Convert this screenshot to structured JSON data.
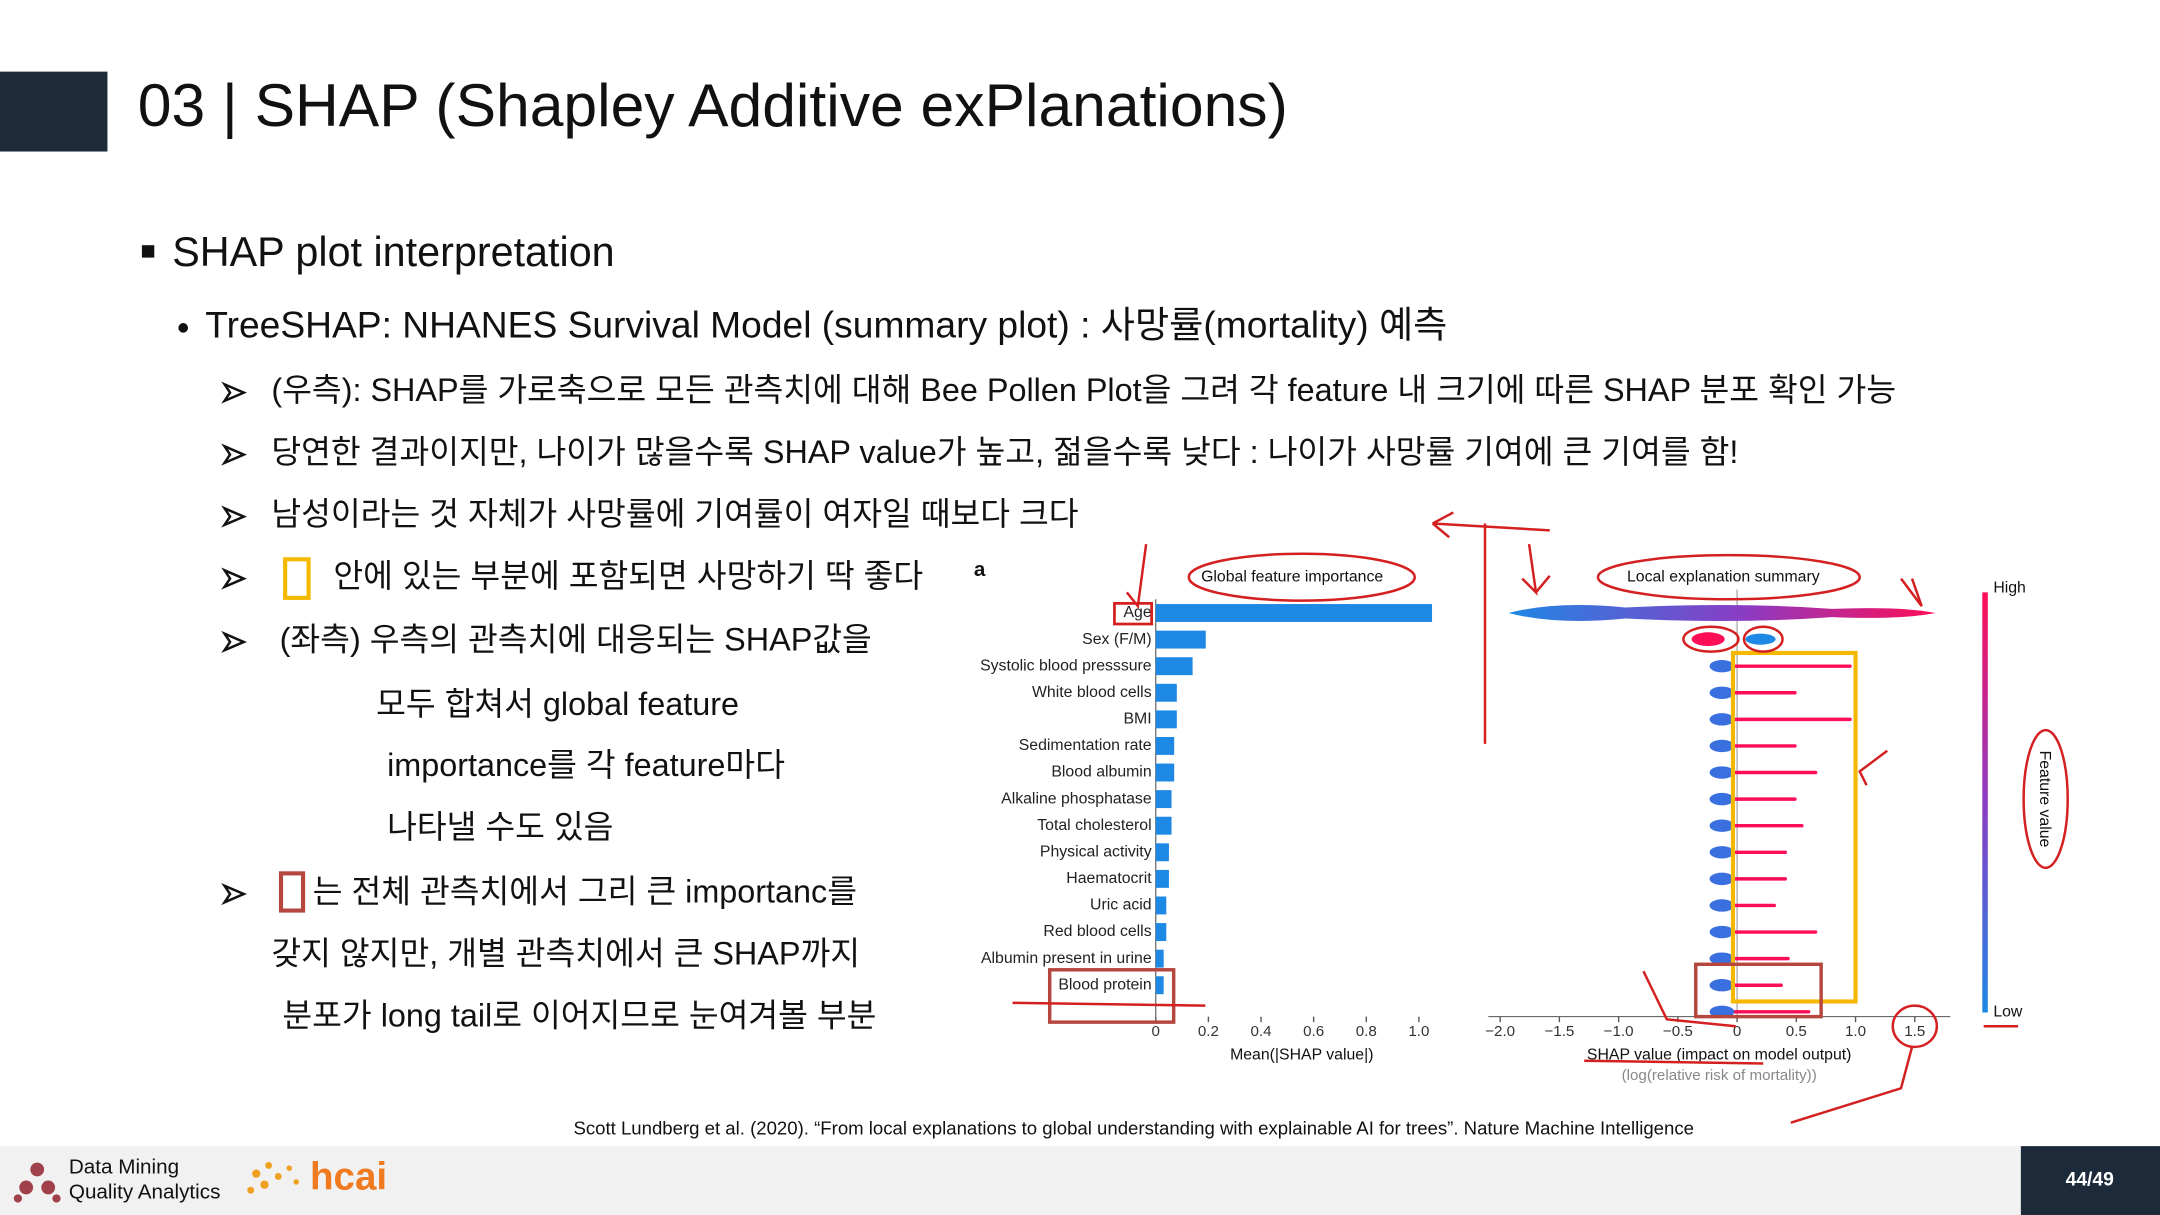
{
  "header": {
    "title": "03 | SHAP (Shapley Additive exPlanations)"
  },
  "section": "SHAP plot interpretation",
  "subsection": "TreeSHAP: NHANES Survival Model (summary plot) : 사망률(mortality) 예측",
  "items": [
    {
      "lines": [
        "(우측): SHAP를 가로축으로 모든 관측치에 대해 Bee Pollen Plot을 그려 각 feature 내 크기에 따른 SHAP 분포 확인 가능"
      ]
    },
    {
      "lines": [
        "당연한 결과이지만, 나이가 많을수록 SHAP value가 높고, 젊을수록 낮다 : 나이가 사망률 기여에 큰 기여를 함!"
      ]
    },
    {
      "lines": [
        "남성이라는 것 자체가 사망률에 기여률이 여자일 때보다 크다"
      ]
    },
    {
      "lines": [
        "안에 있는 부분에 포함되면 사망하기 딱 좋다"
      ],
      "sup": "a"
    },
    {
      "lines": [
        "(좌측) 우측의 관측치에 대응되는 SHAP값을",
        "모두 합쳐서 global feature",
        "importance를 각 feature마다",
        "나타낼 수도 있음"
      ]
    },
    {
      "lines": [
        "는 전체 관측치에서 그리 큰 importanc를",
        "갖지 않지만, 개별 관측치에서 큰 SHAP까지",
        "분포가 long tail로 이어지므로 눈여겨볼 부분"
      ]
    }
  ],
  "chart_data": {
    "type": "bar",
    "orientation": "horizontal",
    "title": "Global feature importance",
    "categories": [
      "Age",
      "Sex (F/M)",
      "Systolic blood presssure",
      "White blood cells",
      "BMI",
      "Sedimentation rate",
      "Blood albumin",
      "Alkaline phosphatase",
      "Total cholesterol",
      "Physical activity",
      "Haematocrit",
      "Uric acid",
      "Red blood cells",
      "Albumin present in urine",
      "Blood protein"
    ],
    "values": [
      1.05,
      0.19,
      0.14,
      0.08,
      0.08,
      0.07,
      0.07,
      0.06,
      0.06,
      0.05,
      0.05,
      0.04,
      0.04,
      0.03,
      0.03
    ],
    "color": "#1e88e5",
    "xlabel": "Mean(|SHAP value|)",
    "xlim": [
      0,
      1.1
    ],
    "xticks": [
      0,
      0.2,
      0.4,
      0.6,
      0.8,
      {
        "value": 1,
        "label": "1.0"
      }
    ]
  },
  "summary_plot": {
    "title": "Local explanation summary",
    "xlabel": "SHAP value (impact on model output)",
    "xlabel2": "(log(relative risk of mortality))",
    "xlim": [
      -2.1,
      1.8
    ],
    "xticks": [
      {
        "value": -2,
        "label": "−2.0"
      },
      {
        "value": -1.5,
        "label": "−1.5"
      },
      {
        "value": -1,
        "label": "−1.0"
      },
      {
        "value": -0.5,
        "label": "−0.5"
      },
      0,
      0.5,
      {
        "value": 1,
        "label": "1.0"
      },
      1.5
    ],
    "colorbar": {
      "high": "High",
      "low": "Low",
      "label": "Feature value"
    }
  },
  "citation": "Scott Lundberg et al. (2020). “From local explanations to global understanding with explainable AI for trees”. Nature Machine Intelligence",
  "footer": {
    "logo_line1": "Data Mining",
    "logo_line2": "Quality Analytics",
    "logo2": "hcai",
    "page": "44/49"
  }
}
